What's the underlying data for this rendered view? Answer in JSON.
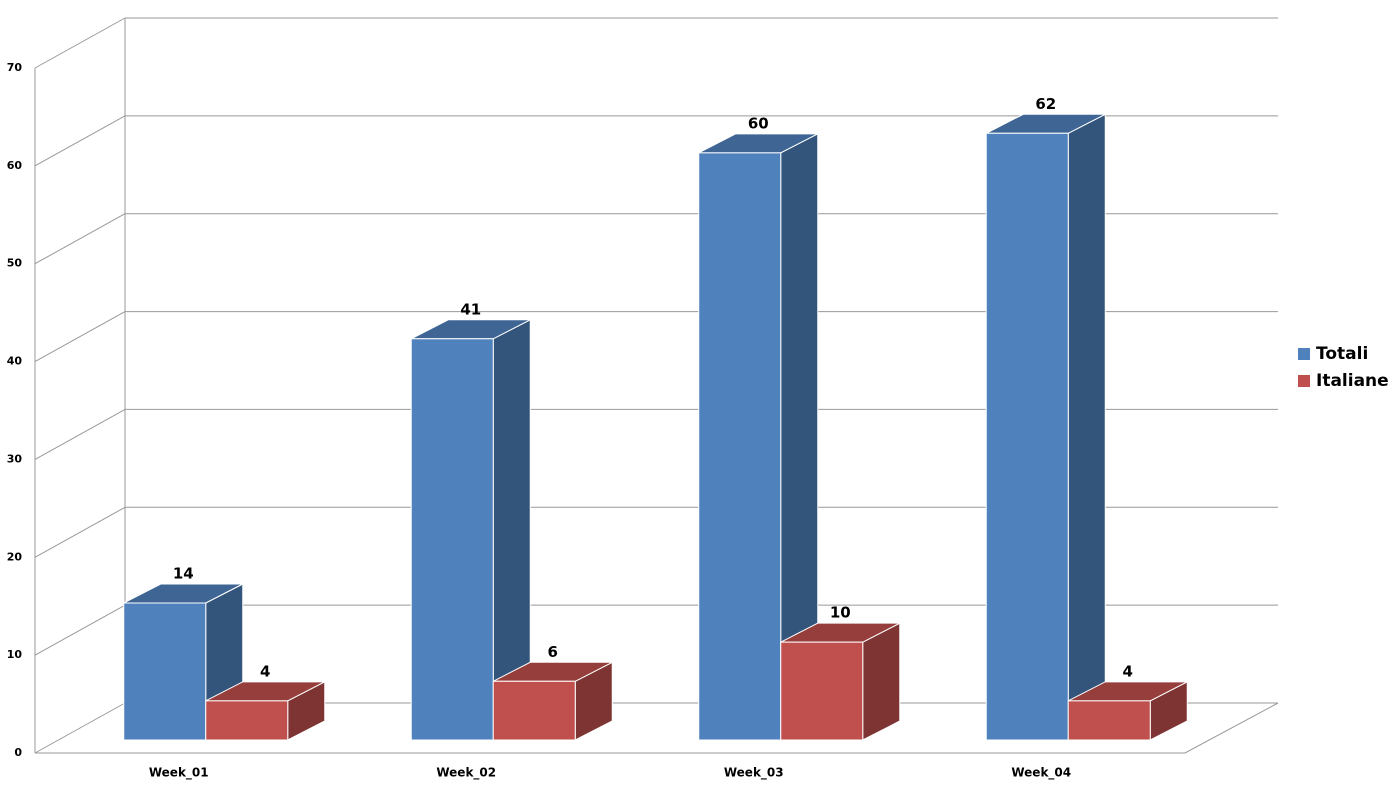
{
  "chart_data": {
    "type": "bar3d",
    "categories": [
      "Week_01",
      "Week_02",
      "Week_03",
      "Week_04"
    ],
    "series": [
      {
        "name": "Totali",
        "color": "#4f81bd",
        "values": [
          14,
          41,
          60,
          62
        ]
      },
      {
        "name": "Italiane",
        "color": "#c0504d",
        "values": [
          4,
          6,
          10,
          4
        ]
      }
    ],
    "ylim": [
      0,
      70
    ],
    "yticks": [
      0,
      10,
      20,
      30,
      40,
      50,
      60,
      70
    ],
    "grid": true,
    "legend": "right"
  }
}
